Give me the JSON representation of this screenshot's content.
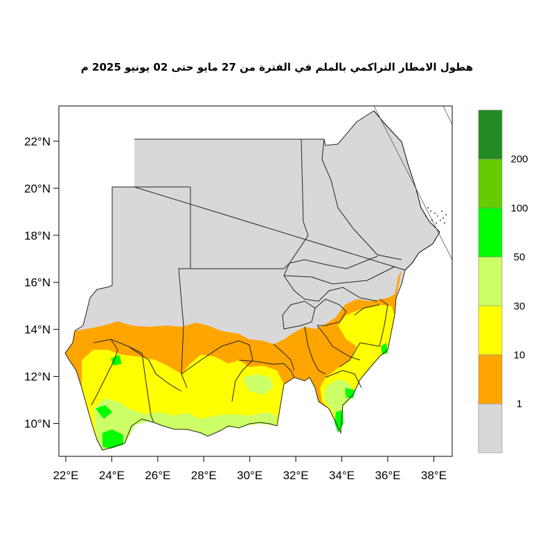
{
  "title": "هطول الامطار التراكمي بالملم في الفترة من 27 مايو حتى 02 يونيو 2025 م",
  "map": {
    "lat_ticks": [
      {
        "value": 22,
        "label": "22°N"
      },
      {
        "value": 20,
        "label": "20°N"
      },
      {
        "value": 18,
        "label": "18°N"
      },
      {
        "value": 16,
        "label": "16°N"
      },
      {
        "value": 14,
        "label": "14°N"
      },
      {
        "value": 12,
        "label": "12°N"
      },
      {
        "value": 10,
        "label": "10°N"
      }
    ],
    "lon_ticks": [
      {
        "value": 22,
        "label": "22°E"
      },
      {
        "value": 24,
        "label": "24°E"
      },
      {
        "value": 26,
        "label": "26°E"
      },
      {
        "value": 28,
        "label": "28°E"
      },
      {
        "value": 30,
        "label": "30°E"
      },
      {
        "value": 32,
        "label": "32°E"
      },
      {
        "value": 34,
        "label": "34°E"
      },
      {
        "value": 36,
        "label": "36°E"
      },
      {
        "value": 38,
        "label": "38°E"
      }
    ],
    "lon_range": [
      21.7,
      38.8
    ],
    "lat_range": [
      8.6,
      23.5
    ],
    "no_rain_color": "#d8d8d8"
  },
  "colorbar": {
    "labels": [
      "1",
      "10",
      "30",
      "50",
      "100",
      "200"
    ],
    "colors": [
      "#d8d8d8",
      "#ffa500",
      "#ffff00",
      "#ccff66",
      "#00ff00",
      "#66cc00",
      "#228b22"
    ]
  }
}
